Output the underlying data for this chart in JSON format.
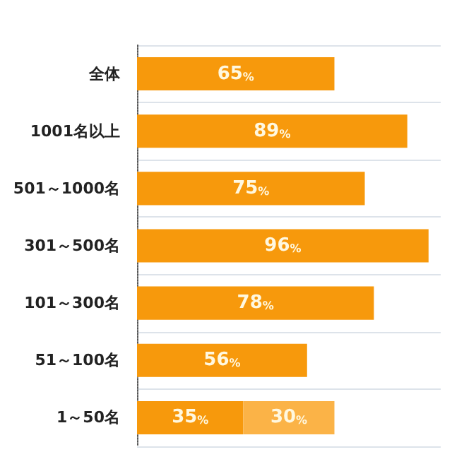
{
  "chart_data": {
    "type": "bar",
    "orientation": "horizontal",
    "stacked": true,
    "categories": [
      "全体",
      "1001名以上",
      "501～1000名",
      "301～500名",
      "101～300名",
      "51～100名",
      "1～50名"
    ],
    "xlim": [
      0,
      100
    ],
    "tick_labels": "y",
    "series": [
      {
        "color": "#f7990c",
        "values": [
          65,
          89,
          75,
          96,
          78,
          56,
          35
        ],
        "value_labels": [
          "65%",
          "89%",
          "75%",
          "96%",
          "78%",
          "56%",
          "35%"
        ]
      },
      {
        "color": "#fbb347",
        "values": [
          null,
          null,
          null,
          null,
          null,
          null,
          30
        ],
        "value_labels": [
          null,
          null,
          null,
          null,
          null,
          null,
          "30%"
        ]
      }
    ]
  }
}
